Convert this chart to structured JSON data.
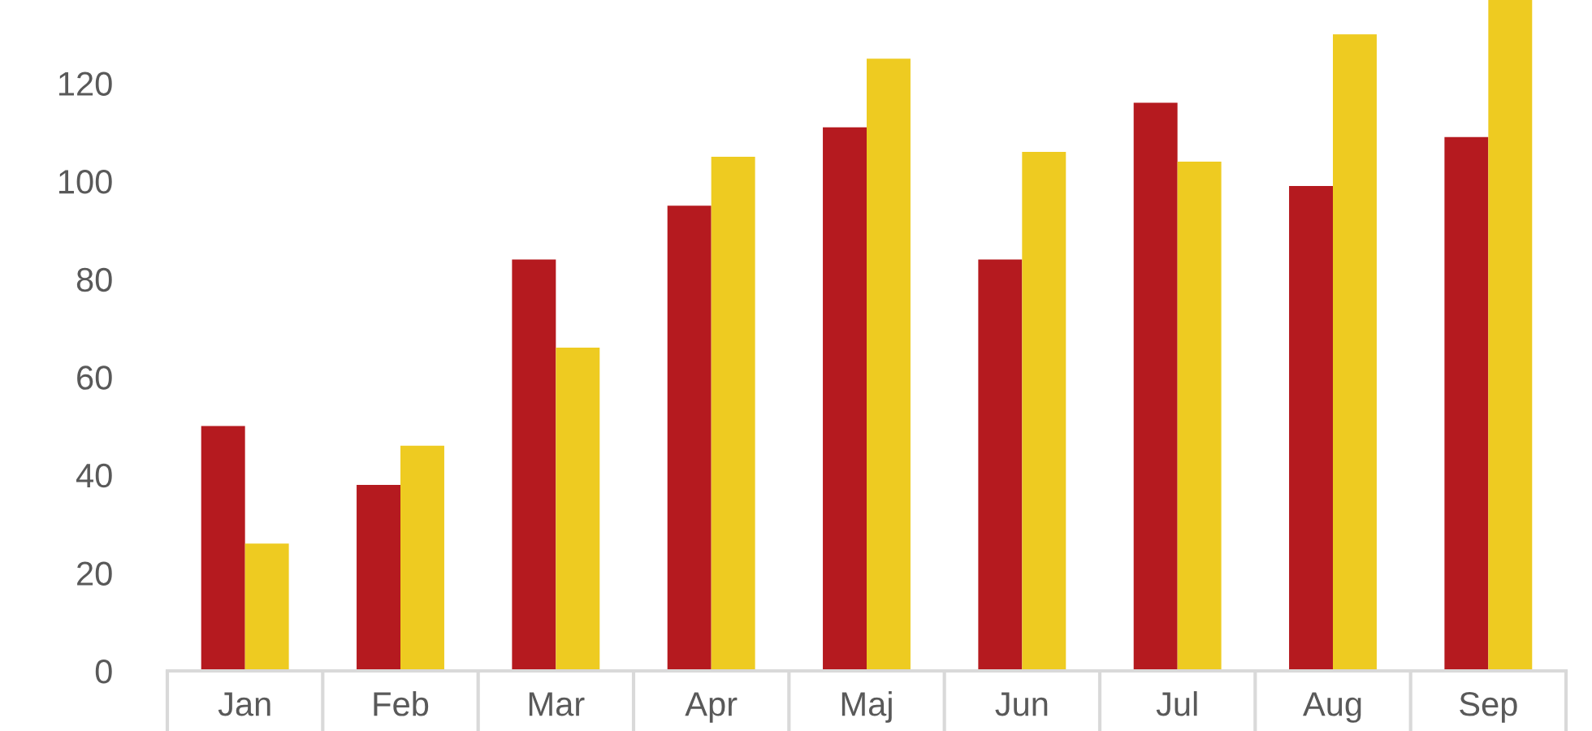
{
  "chart_data": {
    "type": "bar",
    "categories": [
      "Jan",
      "Feb",
      "Mar",
      "Apr",
      "Maj",
      "Jun",
      "Jul",
      "Aug",
      "Sep"
    ],
    "series": [
      {
        "color": "#b51a1f",
        "values": [
          50,
          38,
          84,
          95,
          111,
          84,
          116,
          99,
          109
        ]
      },
      {
        "color": "#eecb21",
        "values": [
          26,
          46,
          66,
          105,
          125,
          106,
          104,
          130,
          137
        ]
      }
    ],
    "ylim": [
      0,
      137
    ],
    "yticks": [
      0,
      20,
      40,
      60,
      80,
      100,
      120
    ]
  }
}
